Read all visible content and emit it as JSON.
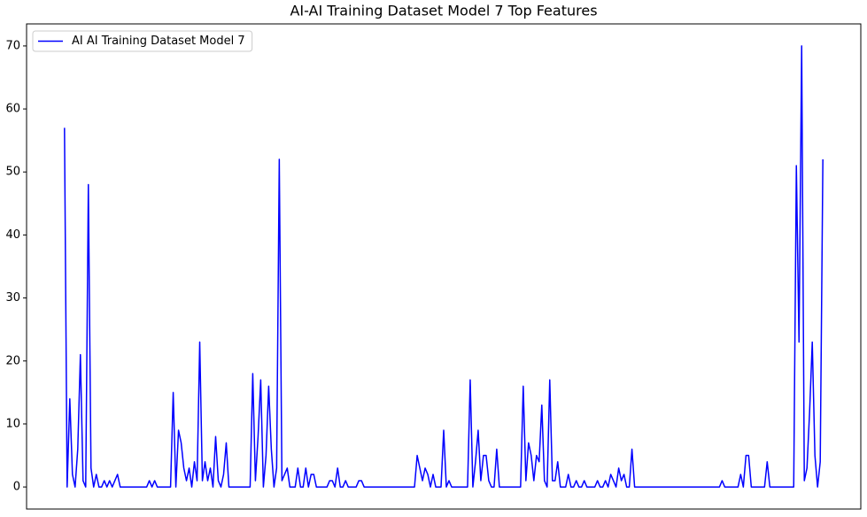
{
  "chart_data": {
    "type": "line",
    "title": "AI-AI Training Dataset Model 7 Top Features",
    "legend": "upper left",
    "ylim": [
      -3.5,
      73.5
    ],
    "yticks": [
      0,
      10,
      20,
      30,
      40,
      50,
      60,
      70
    ],
    "series": [
      {
        "name": "AI AI Training Dataset Model 7",
        "color": "#0000ff",
        "values": [
          57,
          0,
          14,
          2,
          0,
          6,
          21,
          1,
          0,
          48,
          3,
          0,
          2,
          0,
          0,
          1,
          0,
          1,
          0,
          1,
          2,
          0,
          0,
          0,
          0,
          0,
          0,
          0,
          0,
          0,
          0,
          0,
          1,
          0,
          1,
          0,
          0,
          0,
          0,
          0,
          0,
          15,
          0,
          9,
          7,
          3,
          1,
          3,
          0,
          4,
          1,
          23,
          1,
          4,
          1,
          3,
          0,
          8,
          1,
          0,
          2,
          7,
          0,
          0,
          0,
          0,
          0,
          0,
          0,
          0,
          0,
          18,
          1,
          8,
          17,
          0,
          5,
          16,
          6,
          0,
          3,
          52,
          1,
          2,
          3,
          0,
          0,
          0,
          3,
          0,
          0,
          3,
          0,
          2,
          2,
          0,
          0,
          0,
          0,
          0,
          1,
          1,
          0,
          3,
          0,
          0,
          1,
          0,
          0,
          0,
          0,
          1,
          1,
          0,
          0,
          0,
          0,
          0,
          0,
          0,
          0,
          0,
          0,
          0,
          0,
          0,
          0,
          0,
          0,
          0,
          0,
          0,
          0,
          5,
          3,
          1,
          3,
          2,
          0,
          2,
          0,
          0,
          0,
          9,
          0,
          1,
          0,
          0,
          0,
          0,
          0,
          0,
          0,
          17,
          0,
          4,
          9,
          1,
          5,
          5,
          1,
          0,
          0,
          6,
          0,
          0,
          0,
          0,
          0,
          0,
          0,
          0,
          0,
          16,
          1,
          7,
          5,
          1,
          5,
          4,
          13,
          1,
          0,
          17,
          1,
          1,
          4,
          0,
          0,
          0,
          2,
          0,
          0,
          1,
          0,
          0,
          1,
          0,
          0,
          0,
          0,
          1,
          0,
          0,
          1,
          0,
          2,
          1,
          0,
          3,
          1,
          2,
          0,
          0,
          6,
          0,
          0,
          0,
          0,
          0,
          0,
          0,
          0,
          0,
          0,
          0,
          0,
          0,
          0,
          0,
          0,
          0,
          0,
          0,
          0,
          0,
          0,
          0,
          0,
          0,
          0,
          0,
          0,
          0,
          0,
          0,
          0,
          0,
          1,
          0,
          0,
          0,
          0,
          0,
          0,
          2,
          0,
          5,
          5,
          0,
          0,
          0,
          0,
          0,
          0,
          4,
          0,
          0,
          0,
          0,
          0,
          0,
          0,
          0,
          0,
          0,
          51,
          23,
          70,
          1,
          3,
          12,
          23,
          5,
          0,
          4,
          52
        ]
      }
    ]
  }
}
